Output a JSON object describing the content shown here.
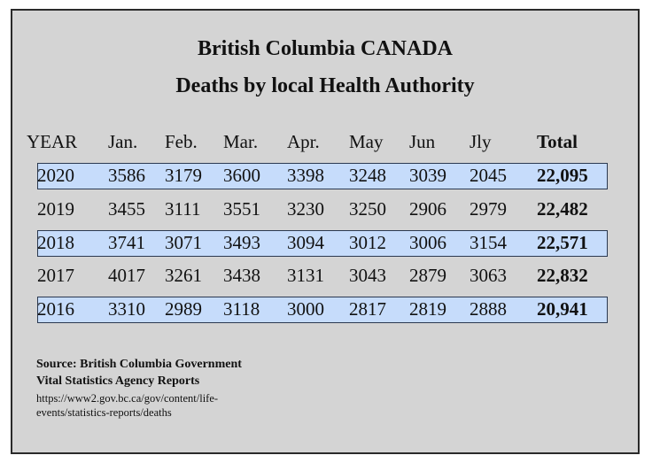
{
  "chart_data": {
    "type": "table",
    "title": "British Columbia CANADA",
    "subtitle": "Deaths by local Health Authority",
    "columns": [
      "YEAR",
      "Jan.",
      "Feb.",
      "Mar.",
      "Apr.",
      "May",
      "Jun",
      "Jly",
      "Total"
    ],
    "rows": [
      {
        "year": "2020",
        "values": [
          "3586",
          "3179",
          "3600",
          "3398",
          "3248",
          "3039",
          "2045"
        ],
        "total": "22,095",
        "highlighted": true
      },
      {
        "year": "2019",
        "values": [
          "3455",
          "3111",
          "3551",
          "3230",
          "3250",
          "2906",
          "2979"
        ],
        "total": "22,482",
        "highlighted": false
      },
      {
        "year": "2018",
        "values": [
          "3741",
          "3071",
          "3493",
          "3094",
          "3012",
          "3006",
          "3154"
        ],
        "total": "22,571",
        "highlighted": true
      },
      {
        "year": "2017",
        "values": [
          "4017",
          "3261",
          "3438",
          "3131",
          "3043",
          "2879",
          "3063"
        ],
        "total": "22,832",
        "highlighted": false
      },
      {
        "year": "2016",
        "values": [
          "3310",
          "2989",
          "3118",
          "3000",
          "2817",
          "2819",
          "2888"
        ],
        "total": "20,941",
        "highlighted": true
      }
    ],
    "highlight_color": "#c6dcfb",
    "background_color": "#d4d4d4"
  },
  "source": {
    "line1": "Source: British Columbia Government",
    "line2": "Vital Statistics Agency Reports",
    "url_line1": "https://www2.gov.bc.ca/gov/content/life-",
    "url_line2": "events/statistics-reports/deaths"
  }
}
